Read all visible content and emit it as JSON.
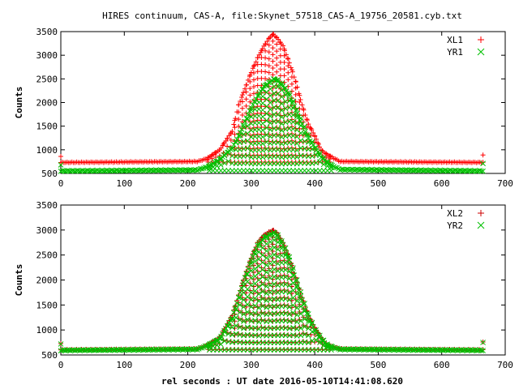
{
  "chart_data": {
    "title": "HIRES continuum, CAS-A, file:Skynet_57518_CAS-A_19756_20581.cyb.txt",
    "xlabel": "rel seconds : UT date 2016-05-10T14:41:08.620",
    "grid": false,
    "panels": [
      {
        "type": "scatter",
        "ylabel": "Counts",
        "xlim": [
          0,
          700
        ],
        "ylim": [
          500,
          3500
        ],
        "x_ticks": [
          0,
          100,
          200,
          300,
          400,
          500,
          600,
          700
        ],
        "y_ticks": [
          500,
          1000,
          1500,
          2000,
          2500,
          3000,
          3500
        ],
        "legend_position": "top-right",
        "series": [
          {
            "name": "XL1",
            "marker": "plus",
            "color": "#ff0000",
            "baseline": 740,
            "x": [
              0,
              215,
              230,
              250,
              270,
              280,
              290,
              300,
              310,
              320,
              330,
              335,
              340,
              350,
              360,
              370,
              380,
              390,
              400,
              410,
              420,
              440,
              665
            ],
            "y": [
              740,
              760,
              820,
              1000,
              1400,
              1950,
              2300,
              2650,
              2950,
              3200,
              3400,
              3450,
              3380,
              3200,
              2850,
              2450,
              1950,
              1550,
              1300,
              1000,
              900,
              760,
              740
            ]
          },
          {
            "name": "YR1",
            "marker": "cross",
            "color": "#00c000",
            "baseline": 560,
            "x": [
              0,
              215,
              230,
              250,
              270,
              280,
              290,
              300,
              310,
              320,
              330,
              335,
              340,
              350,
              360,
              370,
              380,
              390,
              400,
              410,
              420,
              440,
              665
            ],
            "y": [
              560,
              580,
              640,
              800,
              1050,
              1300,
              1600,
              1900,
              2150,
              2350,
              2450,
              2500,
              2480,
              2350,
              2150,
              1850,
              1550,
              1250,
              1050,
              850,
              720,
              590,
              560
            ]
          }
        ]
      },
      {
        "type": "scatter",
        "ylabel": "Counts",
        "xlim": [
          0,
          700
        ],
        "ylim": [
          500,
          3500
        ],
        "x_ticks": [
          0,
          100,
          200,
          300,
          400,
          500,
          600,
          700
        ],
        "y_ticks": [
          500,
          1000,
          1500,
          2000,
          2500,
          3000,
          3500
        ],
        "legend_position": "top-right",
        "series": [
          {
            "name": "XL2",
            "marker": "plus",
            "color": "#cc0000",
            "baseline": 610,
            "x": [
              0,
              215,
              230,
              250,
              270,
              280,
              290,
              300,
              310,
              320,
              330,
              335,
              340,
              350,
              360,
              370,
              380,
              390,
              400,
              410,
              420,
              440,
              665
            ],
            "y": [
              610,
              630,
              700,
              850,
              1300,
              1700,
              2100,
              2450,
              2750,
              2900,
              2980,
              3000,
              2950,
              2750,
              2450,
              2050,
              1650,
              1300,
              1050,
              850,
              700,
              630,
              610
            ]
          },
          {
            "name": "YR2",
            "marker": "cross",
            "color": "#00c000",
            "baseline": 600,
            "x": [
              0,
              215,
              230,
              250,
              270,
              280,
              290,
              300,
              310,
              320,
              330,
              335,
              340,
              350,
              360,
              370,
              380,
              390,
              400,
              410,
              420,
              440,
              665
            ],
            "y": [
              600,
              620,
              690,
              830,
              1250,
              1650,
              2050,
              2400,
              2700,
              2850,
              2920,
              2950,
              2900,
              2700,
              2400,
              2000,
              1600,
              1250,
              1000,
              820,
              690,
              620,
              600
            ]
          }
        ]
      }
    ]
  }
}
